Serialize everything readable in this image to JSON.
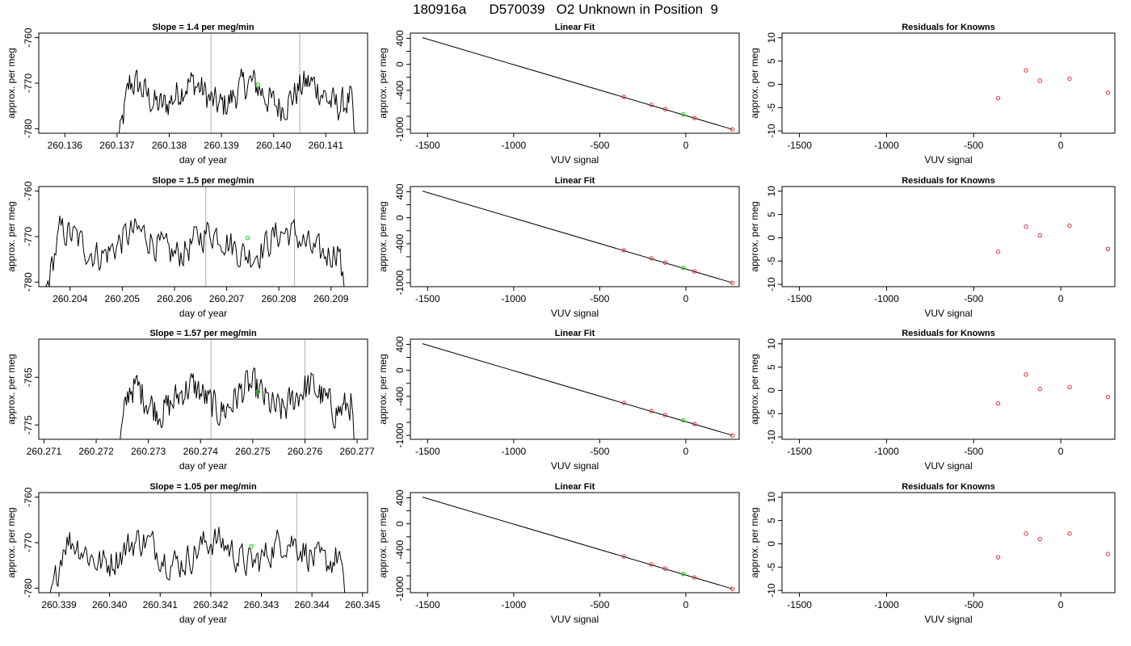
{
  "page": {
    "title": "180916a      D570039   O2 Unknown in Position  9"
  },
  "colors": {
    "trace": "#000000",
    "known": "#e0303a",
    "unknown": "#22dd22",
    "vline": "#bbbbbb",
    "axis": "#000000"
  },
  "chart_data": [
    {
      "type": "line",
      "row": 1,
      "panel": "time-series",
      "title": "Slope =  1.4  per meg/min",
      "xlabel": "day of year",
      "ylabel": "approx. per meg",
      "xlim": [
        260.1355,
        260.1418
      ],
      "ylim": [
        -781,
        -759
      ],
      "xticks": [
        260.136,
        260.137,
        260.138,
        260.139,
        260.14,
        260.141
      ],
      "xtick_labels": [
        "260.136",
        "260.137",
        "260.138",
        "260.139",
        "260.140",
        "260.141"
      ],
      "yticks": [
        -760,
        -770,
        -780
      ],
      "ytick_labels": [
        "-760",
        "-770",
        "-780"
      ],
      "data_start": 260.137,
      "data_end": 260.1416,
      "level": -772.5,
      "vlines": [
        260.1388,
        260.1405
      ],
      "marker": {
        "x": 260.1397,
        "y": -770.3
      }
    },
    {
      "type": "scatter",
      "row": 1,
      "panel": "linear-fit",
      "title": "Linear Fit",
      "xlabel": "VUV signal",
      "ylabel": "approx. per meg",
      "xlim": [
        -1600,
        310
      ],
      "ylim": [
        -1060,
        480
      ],
      "xticks": [
        -1500,
        -1000,
        -500,
        0
      ],
      "xtick_labels": [
        "-1500",
        "-1000",
        "-500",
        "0"
      ],
      "yticks": [
        400,
        0,
        -400,
        -1000
      ],
      "ytick_labels": [
        "400",
        "0",
        "-400",
        "-1000"
      ],
      "line": {
        "x": [
          -1530,
          270
        ],
        "y": [
          410,
          -1000
        ]
      },
      "knowns": {
        "x": [
          -360,
          -200,
          -120,
          50,
          270
        ],
        "y": [
          -500,
          -625,
          -690,
          -825,
          -1000
        ]
      },
      "unknown": {
        "x": -15,
        "y": -770
      }
    },
    {
      "type": "scatter",
      "row": 1,
      "panel": "residuals",
      "title": "Residuals for Knowns",
      "xlabel": "VUV signal",
      "ylabel": "approx. per meg",
      "xlim": [
        -1600,
        310
      ],
      "ylim": [
        -10.5,
        11
      ],
      "xticks": [
        -1500,
        -1000,
        -500,
        0
      ],
      "xtick_labels": [
        "-1500",
        "-1000",
        "-500",
        "0"
      ],
      "yticks": [
        10,
        5,
        0,
        -5,
        -10
      ],
      "ytick_labels": [
        "10",
        "5",
        "0",
        "-5",
        "-10"
      ],
      "x": [
        -360,
        -200,
        -120,
        50,
        270
      ],
      "y": [
        -3.0,
        3.0,
        0.8,
        1.2,
        -1.8
      ]
    },
    {
      "type": "line",
      "row": 2,
      "panel": "time-series",
      "title": "Slope =  1.5  per meg/min",
      "xlabel": "day of year",
      "ylabel": "approx. per meg",
      "xlim": [
        260.2034,
        260.2097
      ],
      "ylim": [
        -781,
        -759
      ],
      "xticks": [
        260.204,
        260.205,
        260.206,
        260.207,
        260.208,
        260.209
      ],
      "xtick_labels": [
        "260.204",
        "260.205",
        "260.206",
        "260.207",
        "260.208",
        "260.209"
      ],
      "yticks": [
        -760,
        -770,
        -780
      ],
      "ytick_labels": [
        "-760",
        "-770",
        "-780"
      ],
      "data_start": 260.2035,
      "data_end": 260.2093,
      "level": -771.5,
      "vlines": [
        260.2066,
        260.2083
      ],
      "marker": {
        "x": 260.2074,
        "y": -770.3
      }
    },
    {
      "type": "scatter",
      "row": 2,
      "panel": "linear-fit",
      "title": "Linear Fit",
      "xlabel": "VUV signal",
      "ylabel": "approx. per meg",
      "xlim": [
        -1600,
        310
      ],
      "ylim": [
        -1060,
        480
      ],
      "xticks": [
        -1500,
        -1000,
        -500,
        0
      ],
      "xtick_labels": [
        "-1500",
        "-1000",
        "-500",
        "0"
      ],
      "yticks": [
        400,
        0,
        -400,
        -1000
      ],
      "ytick_labels": [
        "400",
        "0",
        "-400",
        "-1000"
      ],
      "line": {
        "x": [
          -1530,
          270
        ],
        "y": [
          410,
          -1000
        ]
      },
      "knowns": {
        "x": [
          -360,
          -200,
          -120,
          50,
          270
        ],
        "y": [
          -500,
          -625,
          -690,
          -825,
          -1000
        ]
      },
      "unknown": {
        "x": -15,
        "y": -770
      }
    },
    {
      "type": "scatter",
      "row": 2,
      "panel": "residuals",
      "title": "Residuals for Knowns",
      "xlabel": "VUV signal",
      "ylabel": "approx. per meg",
      "xlim": [
        -1600,
        310
      ],
      "ylim": [
        -10.5,
        11
      ],
      "xticks": [
        -1500,
        -1000,
        -500,
        0
      ],
      "xtick_labels": [
        "-1500",
        "-1000",
        "-500",
        "0"
      ],
      "yticks": [
        10,
        5,
        0,
        -5,
        -10
      ],
      "ytick_labels": [
        "10",
        "5",
        "0",
        "-5",
        "-10"
      ],
      "x": [
        -360,
        -200,
        -120,
        50,
        270
      ],
      "y": [
        -3.0,
        2.4,
        0.5,
        2.6,
        -2.4
      ]
    },
    {
      "type": "line",
      "row": 3,
      "panel": "time-series",
      "title": "Slope =  1.57  per meg/min",
      "xlabel": "day of year",
      "ylabel": "approx. per meg",
      "xlim": [
        260.2709,
        260.2772
      ],
      "ylim": [
        -778,
        -757
      ],
      "xticks": [
        260.271,
        260.272,
        260.273,
        260.274,
        260.275,
        260.276,
        260.277
      ],
      "xtick_labels": [
        "260.271",
        "260.272",
        "260.273",
        "260.274",
        "260.275",
        "260.276",
        "260.277"
      ],
      "yticks": [
        -765,
        -775
      ],
      "ytick_labels": [
        "-765",
        "-775"
      ],
      "data_start": 260.2724,
      "data_end": 260.277,
      "level": -769.5,
      "vlines": [
        260.2742,
        260.276
      ],
      "marker": {
        "x": 260.2751,
        "y": -768.0
      }
    },
    {
      "type": "scatter",
      "row": 3,
      "panel": "linear-fit",
      "title": "Linear Fit",
      "xlabel": "VUV signal",
      "ylabel": "approx. per meg",
      "xlim": [
        -1600,
        310
      ],
      "ylim": [
        -1060,
        480
      ],
      "xticks": [
        -1500,
        -1000,
        -500,
        0
      ],
      "xtick_labels": [
        "-1500",
        "-1000",
        "-500",
        "0"
      ],
      "yticks": [
        400,
        0,
        -400,
        -1000
      ],
      "ytick_labels": [
        "400",
        "0",
        "-400",
        "-1000"
      ],
      "line": {
        "x": [
          -1530,
          270
        ],
        "y": [
          410,
          -1000
        ]
      },
      "knowns": {
        "x": [
          -360,
          -200,
          -120,
          50,
          270
        ],
        "y": [
          -500,
          -625,
          -690,
          -825,
          -1000
        ]
      },
      "unknown": {
        "x": -15,
        "y": -770
      }
    },
    {
      "type": "scatter",
      "row": 3,
      "panel": "residuals",
      "title": "Residuals for Knowns",
      "xlabel": "VUV signal",
      "ylabel": "approx. per meg",
      "xlim": [
        -1600,
        310
      ],
      "ylim": [
        -10.5,
        11
      ],
      "xticks": [
        -1500,
        -1000,
        -500,
        0
      ],
      "xtick_labels": [
        "-1500",
        "-1000",
        "-500",
        "0"
      ],
      "yticks": [
        10,
        5,
        0,
        -5,
        -10
      ],
      "ytick_labels": [
        "10",
        "5",
        "0",
        "-5",
        "-10"
      ],
      "x": [
        -360,
        -200,
        -120,
        50,
        270
      ],
      "y": [
        -2.8,
        3.4,
        0.3,
        0.7,
        -1.4
      ]
    },
    {
      "type": "line",
      "row": 4,
      "panel": "time-series",
      "title": "Slope =  1.05  per meg/min",
      "xlabel": "day of year",
      "ylabel": "approx. per meg",
      "xlim": [
        260.3386,
        260.3451
      ],
      "ylim": [
        -781,
        -759
      ],
      "xticks": [
        260.339,
        260.34,
        260.341,
        260.342,
        260.343,
        260.344,
        260.345
      ],
      "xtick_labels": [
        "260.339",
        "260.340",
        "260.341",
        "260.342",
        "260.343",
        "260.344",
        "260.345"
      ],
      "yticks": [
        -760,
        -770,
        -780
      ],
      "ytick_labels": [
        "-760",
        "-770",
        "-780"
      ],
      "data_start": 260.3388,
      "data_end": 260.3447,
      "level": -772.0,
      "vlines": [
        260.342,
        260.3437
      ],
      "marker": {
        "x": 260.3428,
        "y": -770.8
      }
    },
    {
      "type": "scatter",
      "row": 4,
      "panel": "linear-fit",
      "title": "Linear Fit",
      "xlabel": "VUV signal",
      "ylabel": "approx. per meg",
      "xlim": [
        -1600,
        310
      ],
      "ylim": [
        -1060,
        480
      ],
      "xticks": [
        -1500,
        -1000,
        -500,
        0
      ],
      "xtick_labels": [
        "-1500",
        "-1000",
        "-500",
        "0"
      ],
      "yticks": [
        400,
        0,
        -400,
        -1000
      ],
      "ytick_labels": [
        "400",
        "0",
        "-400",
        "-1000"
      ],
      "line": {
        "x": [
          -1530,
          270
        ],
        "y": [
          410,
          -1000
        ]
      },
      "knowns": {
        "x": [
          -360,
          -200,
          -120,
          50,
          270
        ],
        "y": [
          -500,
          -625,
          -690,
          -825,
          -1000
        ]
      },
      "unknown": {
        "x": -15,
        "y": -770
      }
    },
    {
      "type": "scatter",
      "row": 4,
      "panel": "residuals",
      "title": "Residuals for Knowns",
      "xlabel": "VUV signal",
      "ylabel": "approx. per meg",
      "xlim": [
        -1600,
        310
      ],
      "ylim": [
        -10.5,
        11
      ],
      "xticks": [
        -1500,
        -1000,
        -500,
        0
      ],
      "xtick_labels": [
        "-1500",
        "-1000",
        "-500",
        "0"
      ],
      "yticks": [
        10,
        5,
        0,
        -5,
        -10
      ],
      "ytick_labels": [
        "10",
        "5",
        "0",
        "-5",
        "-10"
      ],
      "x": [
        -360,
        -200,
        -120,
        50,
        270
      ],
      "y": [
        -2.9,
        2.2,
        1.0,
        2.2,
        -2.2
      ]
    }
  ]
}
